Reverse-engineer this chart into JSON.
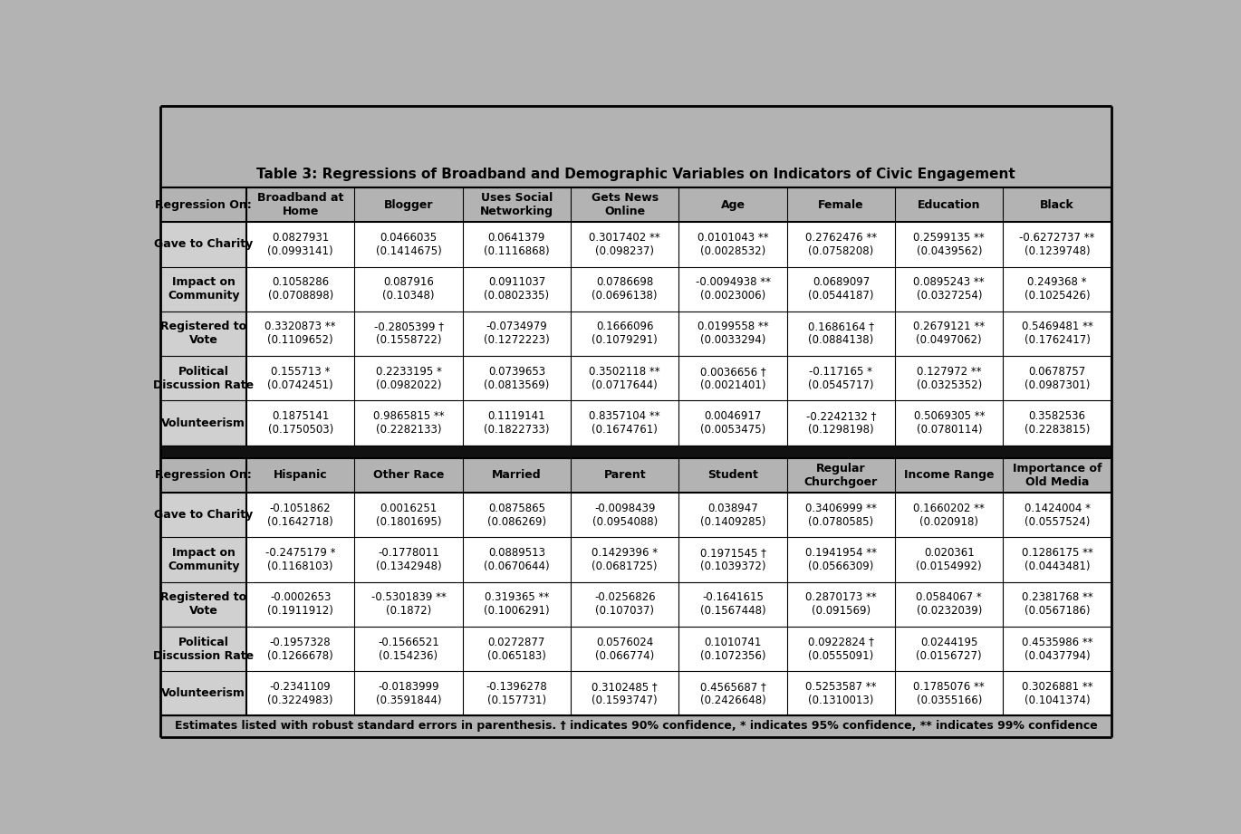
{
  "title": "Table 3: Regressions of Broadband and Demographic Variables on Indicators of Civic Engagement",
  "bg": "#b3b3b3",
  "row_label_bg": "#d0d0d0",
  "white_bg": "#ffffff",
  "dark_sep": "#111111",
  "top_headers": [
    "Regression On:",
    "Broadband at\nHome",
    "Blogger",
    "Uses Social\nNetworking",
    "Gets News\nOnline",
    "Age",
    "Female",
    "Education",
    "Black"
  ],
  "bottom_headers": [
    "Regression On:",
    "Hispanic",
    "Other Race",
    "Married",
    "Parent",
    "Student",
    "Regular\nChurchgoer",
    "Income Range",
    "Importance of\nOld Media"
  ],
  "row_labels": [
    "Volunteerism",
    "Political\nDiscussion Rate",
    "Registered to\nVote",
    "Impact on\nCommunity",
    "Gave to Charity"
  ],
  "top_data": [
    [
      "0.1875141\n(0.1750503)",
      "0.9865815 **\n(0.2282133)",
      "0.1119141\n(0.1822733)",
      "0.8357104 **\n(0.1674761)",
      "0.0046917\n(0.0053475)",
      "-0.2242132 †\n(0.1298198)",
      "0.5069305 **\n(0.0780114)",
      "0.3582536\n(0.2283815)"
    ],
    [
      "0.155713 *\n(0.0742451)",
      "0.2233195 *\n(0.0982022)",
      "0.0739653\n(0.0813569)",
      "0.3502118 **\n(0.0717644)",
      "0.0036656 †\n(0.0021401)",
      "-0.117165 *\n(0.0545717)",
      "0.127972 **\n(0.0325352)",
      "0.0678757\n(0.0987301)"
    ],
    [
      "0.3320873 **\n(0.1109652)",
      "-0.2805399 †\n(0.1558722)",
      "-0.0734979\n(0.1272223)",
      "0.1666096\n(0.1079291)",
      "0.0199558 **\n(0.0033294)",
      "0.1686164 †\n(0.0884138)",
      "0.2679121 **\n(0.0497062)",
      "0.5469481 **\n(0.1762417)"
    ],
    [
      "0.1058286\n(0.0708898)",
      "0.087916\n(0.10348)",
      "0.0911037\n(0.0802335)",
      "0.0786698\n(0.0696138)",
      "-0.0094938 **\n(0.0023006)",
      "0.0689097\n(0.0544187)",
      "0.0895243 **\n(0.0327254)",
      "0.249368 *\n(0.1025426)"
    ],
    [
      "0.0827931\n(0.0993141)",
      "0.0466035\n(0.1414675)",
      "0.0641379\n(0.1116868)",
      "0.3017402 **\n(0.098237)",
      "0.0101043 **\n(0.0028532)",
      "0.2762476 **\n(0.0758208)",
      "0.2599135 **\n(0.0439562)",
      "-0.6272737 **\n(0.1239748)"
    ]
  ],
  "bottom_data": [
    [
      "-0.2341109\n(0.3224983)",
      "-0.0183999\n(0.3591844)",
      "-0.1396278\n(0.157731)",
      "0.3102485 †\n(0.1593747)",
      "0.4565687 †\n(0.2426648)",
      "0.5253587 **\n(0.1310013)",
      "0.1785076 **\n(0.0355166)",
      "0.3026881 **\n(0.1041374)"
    ],
    [
      "-0.1957328\n(0.1266678)",
      "-0.1566521\n(0.154236)",
      "0.0272877\n(0.065183)",
      "0.0576024\n(0.066774)",
      "0.1010741\n(0.1072356)",
      "0.0922824 †\n(0.0555091)",
      "0.0244195\n(0.0156727)",
      "0.4535986 **\n(0.0437794)"
    ],
    [
      "-0.0002653\n(0.1911912)",
      "-0.5301839 **\n(0.1872)",
      "0.319365 **\n(0.1006291)",
      "-0.0256826\n(0.107037)",
      "-0.1641615\n(0.1567448)",
      "0.2870173 **\n(0.091569)",
      "0.0584067 *\n(0.0232039)",
      "0.2381768 **\n(0.0567186)"
    ],
    [
      "-0.2475179 *\n(0.1168103)",
      "-0.1778011\n(0.1342948)",
      "0.0889513\n(0.0670644)",
      "0.1429396 *\n(0.0681725)",
      "0.1971545 †\n(0.1039372)",
      "0.1941954 **\n(0.0566309)",
      "0.020361\n(0.0154992)",
      "0.1286175 **\n(0.0443481)"
    ],
    [
      "-0.1051862\n(0.1642718)",
      "0.0016251\n(0.1801695)",
      "0.0875865\n(0.086269)",
      "-0.0098439\n(0.0954088)",
      "0.038947\n(0.1409285)",
      "0.3406999 **\n(0.0780585)",
      "0.1660202 **\n(0.020918)",
      "0.1424004 *\n(0.0557524)"
    ]
  ],
  "footer": "Estimates listed with robust standard errors in parenthesis. † indicates 90% confidence, * indicates 95% confidence, ** indicates 99% confidence"
}
